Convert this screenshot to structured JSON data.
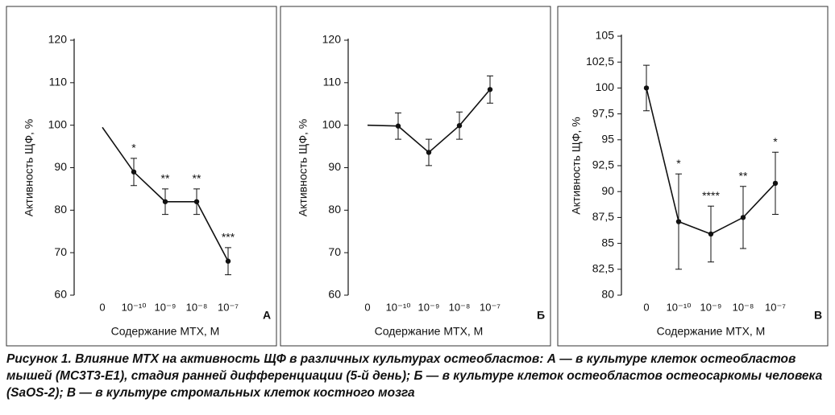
{
  "chart_data": [
    {
      "type": "line",
      "panel": "А",
      "ylabel": "Активность ЩФ, %",
      "xlabel": "Содержание МТХ, М",
      "categories": [
        "0",
        "10⁻¹⁰",
        "10⁻⁹",
        "10⁻⁸",
        "10⁻⁷"
      ],
      "values": [
        99.5,
        89,
        82,
        82,
        68
      ],
      "errors": [
        null,
        3.2,
        3,
        3,
        3.2
      ],
      "markers": [
        false,
        true,
        true,
        true,
        true
      ],
      "annotations": [
        null,
        "*",
        "**",
        "**",
        "***"
      ],
      "color": "#111111",
      "ylim": [
        60,
        120
      ],
      "yticks": [
        60,
        70,
        80,
        90,
        100,
        110,
        120
      ]
    },
    {
      "type": "line",
      "panel": "Б",
      "ylabel": "Активность ЩФ, %",
      "xlabel": "Содержание МТХ, М",
      "categories": [
        "0",
        "10⁻¹⁰",
        "10⁻⁹",
        "10⁻⁸",
        "10⁻⁷"
      ],
      "values": [
        100,
        99.8,
        93.6,
        99.9,
        108.4
      ],
      "errors": [
        null,
        3.1,
        3.1,
        3.2,
        3.2
      ],
      "markers": [
        false,
        true,
        true,
        true,
        true
      ],
      "annotations": [
        null,
        null,
        null,
        null,
        null
      ],
      "color": "#111111",
      "ylim": [
        60,
        120
      ],
      "yticks": [
        60,
        70,
        80,
        90,
        100,
        110,
        120
      ]
    },
    {
      "type": "line",
      "panel": "В",
      "ylabel": "Активность ЩФ, %",
      "xlabel": "Содержание МТХ, М",
      "categories": [
        "0",
        "10⁻¹⁰",
        "10⁻⁹",
        "10⁻⁸",
        "10⁻⁷"
      ],
      "values": [
        100,
        87.1,
        85.9,
        87.5,
        90.8
      ],
      "errors": [
        2.2,
        4.6,
        2.7,
        3,
        3
      ],
      "markers": [
        true,
        true,
        true,
        true,
        true
      ],
      "annotations": [
        null,
        "*",
        "****",
        "**",
        "*"
      ],
      "color": "#111111",
      "ylim": [
        80,
        105
      ],
      "yticks": [
        80,
        {
          "value": 82.5,
          "label": "82,5"
        },
        85,
        {
          "value": 87.5,
          "label": "87,5"
        },
        90,
        {
          "value": 92.5,
          "label": "92,5"
        },
        95,
        {
          "value": 97.5,
          "label": "97,5"
        },
        100,
        {
          "value": 102.5,
          "label": "102,5"
        },
        105
      ]
    }
  ],
  "caption": "Рисунок 1. Влияние МТХ на активность ЩФ в различных культурах остеобластов: А — в культуре клеток остеобластов мышей (MC3T3-E1), стадия ранней дифференциации (5-й день); Б — в культуре клеток остеобластов остеосаркомы человека (SaOS-2); В — в культуре стромальных клеток костного мозга"
}
